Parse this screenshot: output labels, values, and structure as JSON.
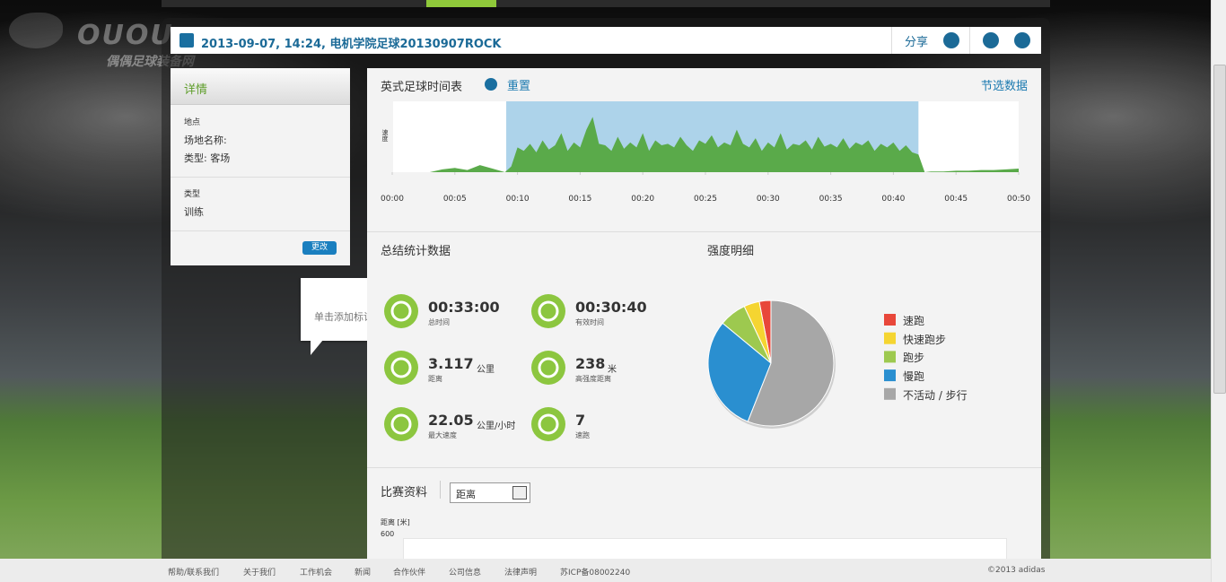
{
  "watermark": {
    "logo": "OUOU",
    "site": "偶偶足球装备网"
  },
  "header": {
    "title": "2013-09-07, 14:24, 电机学院足球20130907ROCK",
    "share": "分享"
  },
  "details": {
    "title": "详情",
    "location_label": "地点",
    "venue": "场地名称:",
    "venue_type": "类型: 客场",
    "category_label": "类型",
    "category": "训练",
    "edit": "更改"
  },
  "tooltip": "单击添加标记",
  "timeline": {
    "title": "英式足球时间表",
    "reset": "重置",
    "select": "节选数据",
    "ylabel": "速度",
    "xlim": [
      0,
      50
    ],
    "ylim": [
      0,
      100
    ],
    "color": "#5aaa4a",
    "selection_color": "#add3ea",
    "xticks": [
      {
        "value": 0,
        "label": "00:00"
      },
      {
        "value": 5,
        "label": "00:05"
      },
      {
        "value": 10,
        "label": "00:10"
      },
      {
        "value": 15,
        "label": "00:15"
      },
      {
        "value": 20,
        "label": "00:20"
      },
      {
        "value": 25,
        "label": "00:25"
      },
      {
        "value": 30,
        "label": "00:30"
      },
      {
        "value": 35,
        "label": "00:35"
      },
      {
        "value": 40,
        "label": "00:40"
      },
      {
        "value": 45,
        "label": "00:45"
      },
      {
        "value": 50,
        "label": "00:50"
      }
    ],
    "selection": [
      9.1,
      42
    ],
    "x": [
      0,
      1,
      2,
      3,
      4,
      5,
      6,
      7,
      8,
      9,
      9.5,
      10,
      10.5,
      11,
      11.5,
      12,
      12.5,
      13,
      13.5,
      14,
      14.5,
      15,
      15.5,
      16,
      16.5,
      17,
      17.5,
      18,
      18.5,
      19,
      19.5,
      20,
      20.5,
      21,
      21.5,
      22,
      22.5,
      23,
      23.5,
      24,
      24.5,
      25,
      25.5,
      26,
      26.5,
      27,
      27.5,
      28,
      28.5,
      29,
      29.5,
      30,
      30.5,
      31,
      31.5,
      32,
      32.5,
      33,
      33.5,
      34,
      34.5,
      35,
      35.5,
      36,
      36.5,
      37,
      37.5,
      38,
      38.5,
      39,
      39.5,
      40,
      40.5,
      41,
      41.5,
      42,
      42.5,
      43,
      44,
      45,
      46,
      47,
      48,
      49,
      50
    ],
    "values": [
      0,
      0,
      0,
      0,
      4,
      6,
      3,
      10,
      5,
      0,
      8,
      35,
      30,
      40,
      28,
      45,
      32,
      38,
      55,
      30,
      42,
      35,
      60,
      78,
      40,
      38,
      30,
      50,
      33,
      42,
      35,
      55,
      30,
      45,
      38,
      40,
      35,
      50,
      38,
      30,
      45,
      40,
      52,
      35,
      42,
      38,
      60,
      40,
      35,
      48,
      30,
      42,
      35,
      55,
      32,
      40,
      38,
      45,
      32,
      50,
      36,
      40,
      35,
      48,
      33,
      42,
      38,
      45,
      30,
      40,
      35,
      42,
      30,
      38,
      28,
      25,
      0,
      1,
      1,
      2,
      2,
      3,
      3,
      4,
      5
    ]
  },
  "summary": {
    "title": "总结统计数据",
    "items": [
      {
        "value": "00:33:00",
        "label": "总时间"
      },
      {
        "value": "00:30:40",
        "label": "有效时间"
      },
      {
        "value": 3.117,
        "unit": "公里",
        "label": "距离"
      },
      {
        "value": 238,
        "unit": "米",
        "label": "高强度距离"
      },
      {
        "value": 22.05,
        "unit": "公里/小时",
        "label": "最大速度"
      },
      {
        "value": 7,
        "label": "速跑"
      }
    ]
  },
  "intensity": {
    "title": "强度明细",
    "series": [
      {
        "name": "速跑",
        "color": "#e8473a",
        "value": 3
      },
      {
        "name": "快速跑步",
        "color": "#f5d531",
        "value": 4
      },
      {
        "name": "跑步",
        "color": "#9dc94f",
        "value": 7
      },
      {
        "name": "慢跑",
        "color": "#2a8fd0",
        "value": 30
      },
      {
        "name": "不活动 / 步行",
        "color": "#a7a7a7",
        "value": 56
      }
    ]
  },
  "match": {
    "title": "比赛资料",
    "select": "距离",
    "ylabel": "距离 [米]",
    "ytop": 600
  },
  "footer": {
    "links": [
      "帮助/联系我们",
      "关于我们",
      "工作机会",
      "新闻",
      "合作伙伴",
      "公司信息",
      "法律声明",
      "苏ICP备08002240"
    ],
    "copyright": "©2013 adidas"
  }
}
